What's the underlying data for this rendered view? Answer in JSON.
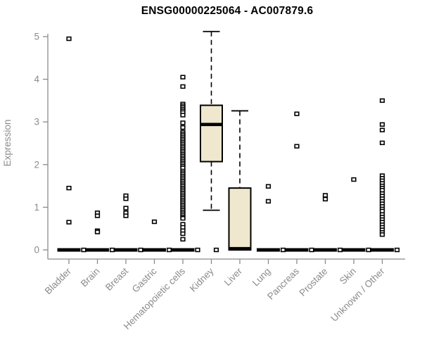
{
  "chart_data": {
    "type": "box",
    "title": "ENSG00000225064 - AC007879.6",
    "ylabel": "Expression",
    "xlabel": "",
    "ylim": [
      0,
      5.2
    ],
    "yticks": [
      0,
      1,
      2,
      3,
      4,
      5
    ],
    "grid": false,
    "legend": null,
    "colors": {
      "box_fill": "#EFE7CE",
      "stroke": "#000000",
      "axis": "#8B8B8B",
      "title": "#000000"
    },
    "categories": [
      {
        "label": "Bladder",
        "box": null,
        "zero_bar": true,
        "points": [
          4.95,
          1.45,
          0.65
        ],
        "side_point": {
          "v": 0,
          "dx": 21
        }
      },
      {
        "label": "Brain",
        "box": null,
        "zero_bar": true,
        "points": [
          0.87,
          0.8,
          0.45,
          0.42
        ],
        "side_point": {
          "v": 0,
          "dx": 21
        }
      },
      {
        "label": "Breast",
        "box": null,
        "zero_bar": true,
        "points": [
          1.27,
          1.2,
          0.98,
          0.87,
          0.8
        ],
        "side_point": {
          "v": 0,
          "dx": 21
        }
      },
      {
        "label": "Gastric",
        "box": null,
        "zero_bar": true,
        "points": [
          0.66
        ],
        "side_point": {
          "v": 0,
          "dx": 21
        }
      },
      {
        "label": "Hematopoietic cells",
        "box": null,
        "zero_bar": true,
        "points": [
          4.05,
          3.83,
          3.42,
          3.38,
          3.34,
          3.3,
          3.26,
          3.22,
          3.16,
          2.98,
          2.87,
          2.76,
          2.72,
          2.68,
          2.64,
          2.6,
          2.56,
          2.52,
          2.48,
          2.44,
          2.4,
          2.36,
          2.32,
          2.28,
          2.24,
          2.2,
          2.16,
          2.12,
          2.08,
          2.04,
          2.0,
          1.96,
          1.92,
          1.85,
          1.81,
          1.77,
          1.73,
          1.69,
          1.65,
          1.61,
          1.57,
          1.53,
          1.49,
          1.45,
          1.41,
          1.37,
          1.33,
          1.29,
          1.25,
          1.21,
          1.17,
          1.13,
          1.09,
          1.05,
          1.01,
          0.97,
          0.93,
          0.89,
          0.85,
          0.81,
          0.77,
          0.74,
          0.6,
          0.53,
          0.45,
          0.38,
          0.25
        ],
        "side_point": {
          "v": 0,
          "dx": 21
        }
      },
      {
        "label": "Kidney",
        "box": {
          "lo": 0.93,
          "q1": 2.07,
          "med": 2.94,
          "q3": 3.39,
          "hi": 5.12
        },
        "zero_bar": false,
        "points": [],
        "side_point": {
          "v": 0,
          "dx": 7
        }
      },
      {
        "label": "Liver",
        "box": {
          "lo": 0,
          "q1": 0,
          "med": 0.03,
          "q3": 1.45,
          "hi": 3.26
        },
        "zero_bar": false,
        "points": [],
        "side_point": null
      },
      {
        "label": "Lung",
        "box": null,
        "zero_bar": true,
        "points": [
          1.49,
          1.14
        ],
        "side_point": {
          "v": 0,
          "dx": 21
        }
      },
      {
        "label": "Pancreas",
        "box": null,
        "zero_bar": true,
        "points": [
          3.19,
          2.43
        ],
        "side_point": {
          "v": 0,
          "dx": 21
        }
      },
      {
        "label": "Prostate",
        "box": null,
        "zero_bar": true,
        "points": [
          1.28,
          1.19
        ],
        "side_point": {
          "v": 0,
          "dx": 21
        }
      },
      {
        "label": "Skin",
        "box": null,
        "zero_bar": true,
        "points": [
          1.65
        ],
        "side_point": {
          "v": 0,
          "dx": 21
        }
      },
      {
        "label": "Unknown / Other",
        "box": null,
        "zero_bar": true,
        "points": [
          3.5,
          2.94,
          2.81,
          2.51,
          1.74,
          1.68,
          1.62,
          1.56,
          1.5,
          1.45,
          1.4,
          1.32,
          1.26,
          1.2,
          1.14,
          1.08,
          1.02,
          0.96,
          0.91,
          0.83,
          0.77,
          0.71,
          0.65,
          0.59,
          0.53,
          0.47,
          0.41,
          0.36
        ],
        "side_point": {
          "v": 0,
          "dx": 21
        }
      }
    ]
  }
}
